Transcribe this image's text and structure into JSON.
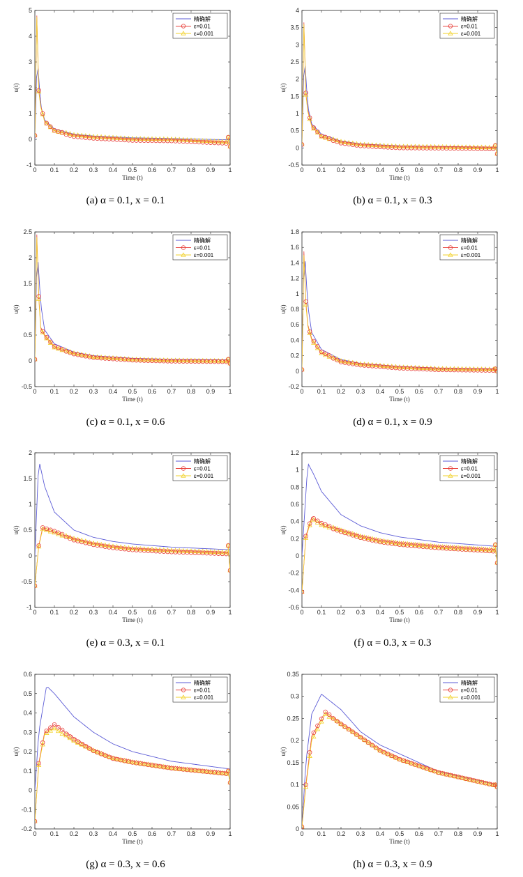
{
  "chart_data": [
    {
      "type": "line",
      "caption": "(a) α = 0.1, x = 0.1",
      "xlabel": "Time (t)",
      "ylabel": "u(t)",
      "xlim": [
        0,
        1
      ],
      "ylim": [
        -1,
        5
      ],
      "xticks": [
        0,
        0.1,
        0.2,
        0.3,
        0.4,
        0.5,
        0.6,
        0.7,
        0.8,
        0.9,
        1
      ],
      "yticks": [
        -1,
        0,
        1,
        2,
        3,
        4,
        5
      ],
      "legend": [
        "精确解",
        "ε=0.01",
        "ε=0.001"
      ],
      "exact_peak": {
        "t": 0.012,
        "u": 3.25
      },
      "eps_peak": {
        "t": 0.01,
        "u": 4.8
      },
      "start_value": 0.15,
      "series": [
        {
          "name": "精确解",
          "t": [
            0.005,
            0.012,
            0.03,
            0.05,
            0.1,
            0.2,
            0.3,
            0.5,
            0.7,
            1.0
          ],
          "u": [
            1.6,
            3.25,
            1.3,
            0.75,
            0.4,
            0.2,
            0.13,
            0.06,
            0.03,
            -0.02
          ]
        },
        {
          "name": "ε=0.01",
          "t": [
            0.01,
            0.02,
            0.03,
            0.05,
            0.1,
            0.2,
            0.3,
            0.5,
            0.7,
            1.0
          ],
          "u": [
            4.8,
            1.9,
            1.3,
            0.7,
            0.35,
            0.15,
            0.08,
            0.0,
            -0.02,
            -0.12
          ]
        },
        {
          "name": "ε=0.001",
          "t": [
            0.01,
            0.02,
            0.03,
            0.05,
            0.1,
            0.2,
            0.3,
            0.5,
            0.7,
            1.0
          ],
          "u": [
            4.75,
            1.85,
            1.25,
            0.68,
            0.33,
            0.13,
            0.06,
            -0.02,
            -0.04,
            -0.15
          ]
        }
      ],
      "eps_end": [
        0.08,
        -0.28
      ],
      "oscillation": 0.07,
      "exact_ttrough": 0.6
    },
    {
      "type": "line",
      "caption": "(b) α = 0.1, x = 0.3",
      "xlabel": "Time (t)",
      "ylabel": "u(t)",
      "xlim": [
        0,
        1
      ],
      "ylim": [
        -0.5,
        4
      ],
      "xticks": [
        0,
        0.1,
        0.2,
        0.3,
        0.4,
        0.5,
        0.6,
        0.7,
        0.8,
        0.9,
        1
      ],
      "yticks": [
        -0.5,
        0,
        0.5,
        1,
        1.5,
        2,
        2.5,
        3,
        3.5,
        4
      ],
      "legend": [
        "精确解",
        "ε=0.01",
        "ε=0.001"
      ],
      "exact_peak": {
        "t": 0.012,
        "u": 2.8
      },
      "eps_peak": {
        "t": 0.01,
        "u": 3.65
      },
      "start_value": 0.1,
      "series": [
        {
          "name": "精确解",
          "t": [
            0.005,
            0.012,
            0.03,
            0.05,
            0.1,
            0.2,
            0.3,
            0.5,
            0.7,
            1.0
          ],
          "u": [
            1.4,
            2.8,
            1.2,
            0.7,
            0.4,
            0.2,
            0.12,
            0.06,
            0.04,
            0.02
          ]
        },
        {
          "name": "ε=0.01",
          "t": [
            0.01,
            0.02,
            0.03,
            0.05,
            0.1,
            0.2,
            0.3,
            0.5,
            0.7,
            1.0
          ],
          "u": [
            3.65,
            1.6,
            1.1,
            0.65,
            0.35,
            0.17,
            0.09,
            0.03,
            0.02,
            0.0
          ]
        },
        {
          "name": "ε=0.001",
          "t": [
            0.01,
            0.02,
            0.03,
            0.05,
            0.1,
            0.2,
            0.3,
            0.5,
            0.7,
            1.0
          ],
          "u": [
            3.6,
            1.55,
            1.05,
            0.62,
            0.33,
            0.15,
            0.07,
            0.01,
            0.0,
            -0.02
          ]
        }
      ],
      "eps_end": [
        0.07,
        -0.17
      ],
      "oscillation": 0.05,
      "exact_ttrough": 0.6
    },
    {
      "type": "line",
      "caption": "(c) α = 0.1, x = 0.6",
      "xlabel": "Time (t)",
      "ylabel": "u(t)",
      "xlim": [
        0,
        1
      ],
      "ylim": [
        -0.5,
        2.5
      ],
      "xticks": [
        0,
        0.1,
        0.2,
        0.3,
        0.4,
        0.5,
        0.6,
        0.7,
        0.8,
        0.9,
        1
      ],
      "yticks": [
        -0.5,
        0,
        0.5,
        1,
        1.5,
        2,
        2.5
      ],
      "legend": [
        "精确解",
        "ε=0.01",
        "ε=0.001"
      ],
      "exact_peak": {
        "t": 0.012,
        "u": 2.2
      },
      "eps_peak": {
        "t": 0.01,
        "u": 2.45
      },
      "start_value": 0.03,
      "series": [
        {
          "name": "精确解",
          "t": [
            0.005,
            0.012,
            0.03,
            0.05,
            0.1,
            0.2,
            0.3,
            0.5,
            0.7,
            1.0
          ],
          "u": [
            1.1,
            2.2,
            1.1,
            0.6,
            0.33,
            0.17,
            0.1,
            0.05,
            0.03,
            0.02
          ]
        },
        {
          "name": "ε=0.01",
          "t": [
            0.01,
            0.02,
            0.03,
            0.05,
            0.1,
            0.2,
            0.3,
            0.5,
            0.7,
            1.0
          ],
          "u": [
            2.45,
            1.25,
            0.65,
            0.5,
            0.28,
            0.15,
            0.08,
            0.03,
            0.01,
            0.0
          ]
        },
        {
          "name": "ε=0.001",
          "t": [
            0.01,
            0.02,
            0.03,
            0.05,
            0.1,
            0.2,
            0.3,
            0.5,
            0.7,
            1.0
          ],
          "u": [
            2.4,
            1.2,
            0.62,
            0.48,
            0.26,
            0.13,
            0.06,
            0.01,
            -0.01,
            -0.02
          ]
        }
      ],
      "eps_end": [
        0.03,
        -0.05
      ],
      "oscillation": 0.03,
      "exact_ttrough": 0.6
    },
    {
      "type": "line",
      "caption": "(d) α = 0.1, x = 0.9",
      "xlabel": "Time (t)",
      "ylabel": "u(t)",
      "xlim": [
        0,
        1
      ],
      "ylim": [
        -0.2,
        1.8
      ],
      "xticks": [
        0,
        0.1,
        0.2,
        0.3,
        0.4,
        0.5,
        0.6,
        0.7,
        0.8,
        0.9,
        1
      ],
      "yticks": [
        -0.2,
        0,
        0.2,
        0.4,
        0.6,
        0.8,
        1,
        1.2,
        1.4,
        1.6,
        1.8
      ],
      "legend": [
        "精确解",
        "ε=0.01",
        "ε=0.001"
      ],
      "exact_peak": {
        "t": 0.012,
        "u": 1.62
      },
      "eps_peak": {
        "t": 0.01,
        "u": 1.55
      },
      "start_value": 0.02,
      "series": [
        {
          "name": "精确解",
          "t": [
            0.005,
            0.012,
            0.03,
            0.05,
            0.1,
            0.2,
            0.3,
            0.5,
            0.7,
            1.0
          ],
          "u": [
            0.8,
            1.62,
            0.85,
            0.5,
            0.28,
            0.15,
            0.1,
            0.06,
            0.04,
            0.03
          ]
        },
        {
          "name": "ε=0.01",
          "t": [
            0.01,
            0.02,
            0.03,
            0.05,
            0.1,
            0.2,
            0.3,
            0.5,
            0.7,
            1.0
          ],
          "u": [
            1.55,
            0.9,
            0.6,
            0.42,
            0.25,
            0.13,
            0.09,
            0.05,
            0.03,
            0.02
          ]
        },
        {
          "name": "ε=0.001",
          "t": [
            0.01,
            0.02,
            0.03,
            0.05,
            0.1,
            0.2,
            0.3,
            0.5,
            0.7,
            1.0
          ],
          "u": [
            1.5,
            0.86,
            0.58,
            0.4,
            0.23,
            0.12,
            0.08,
            0.04,
            0.02,
            0.01
          ]
        }
      ],
      "eps_end": [
        0.03,
        0.0
      ],
      "oscillation": 0.02,
      "exact_ttrough": 0.6
    },
    {
      "type": "line",
      "caption": "(e) α = 0.3, x = 0.1",
      "xlabel": "Time (t)",
      "ylabel": "u(t)",
      "xlim": [
        0,
        1
      ],
      "ylim": [
        -1,
        2
      ],
      "xticks": [
        0,
        0.1,
        0.2,
        0.3,
        0.4,
        0.5,
        0.6,
        0.7,
        0.8,
        0.9,
        1
      ],
      "yticks": [
        -1,
        -0.5,
        0,
        0.5,
        1,
        1.5,
        2
      ],
      "legend": [
        "精确解",
        "ε=0.01",
        "ε=0.001"
      ],
      "exact_peak": {
        "t": 0.02,
        "u": 1.87
      },
      "eps_peak": {
        "t": 0.04,
        "u": 0.55
      },
      "start_value": -0.58,
      "series": [
        {
          "name": "精确解",
          "t": [
            0.0,
            0.02,
            0.05,
            0.1,
            0.2,
            0.3,
            0.4,
            0.5,
            0.7,
            1.0
          ],
          "u": [
            0.0,
            1.87,
            1.35,
            0.85,
            0.5,
            0.36,
            0.28,
            0.23,
            0.17,
            0.12
          ]
        },
        {
          "name": "ε=0.01",
          "t": [
            0.0,
            0.02,
            0.04,
            0.1,
            0.2,
            0.3,
            0.4,
            0.5,
            0.7,
            1.0
          ],
          "u": [
            -0.58,
            0.2,
            0.55,
            0.48,
            0.33,
            0.24,
            0.18,
            0.14,
            0.1,
            0.06
          ]
        },
        {
          "name": "ε=0.001",
          "t": [
            0.0,
            0.02,
            0.04,
            0.1,
            0.2,
            0.3,
            0.4,
            0.5,
            0.7,
            1.0
          ],
          "u": [
            -0.56,
            0.18,
            0.52,
            0.45,
            0.31,
            0.22,
            0.16,
            0.12,
            0.08,
            0.04
          ]
        }
      ],
      "eps_end": [
        0.2,
        -0.28
      ],
      "oscillation": 0.04,
      "exact_ttrough": 0.6
    },
    {
      "type": "line",
      "caption": "(f) α = 0.3, x = 0.3",
      "xlabel": "Time (t)",
      "ylabel": "u(t)",
      "xlim": [
        0,
        1
      ],
      "ylim": [
        -0.6,
        1.2
      ],
      "xticks": [
        0,
        0.1,
        0.2,
        0.3,
        0.4,
        0.5,
        0.6,
        0.7,
        0.8,
        0.9,
        1
      ],
      "yticks": [
        -0.6,
        -0.4,
        -0.2,
        0,
        0.2,
        0.4,
        0.6,
        0.8,
        1,
        1.2
      ],
      "legend": [
        "精确解",
        "ε=0.01",
        "ε=0.001"
      ],
      "exact_peak": {
        "t": 0.03,
        "u": 1.08
      },
      "eps_peak": {
        "t": 0.05,
        "u": 0.45
      },
      "start_value": -0.42,
      "series": [
        {
          "name": "精确解",
          "t": [
            0.0,
            0.03,
            0.06,
            0.1,
            0.2,
            0.3,
            0.4,
            0.5,
            0.7,
            1.0
          ],
          "u": [
            0.0,
            1.08,
            0.95,
            0.75,
            0.48,
            0.35,
            0.27,
            0.22,
            0.16,
            0.11
          ]
        },
        {
          "name": "ε=0.01",
          "t": [
            0.0,
            0.02,
            0.05,
            0.1,
            0.2,
            0.3,
            0.4,
            0.5,
            0.7,
            1.0
          ],
          "u": [
            -0.42,
            0.23,
            0.45,
            0.38,
            0.3,
            0.23,
            0.18,
            0.15,
            0.11,
            0.07
          ]
        },
        {
          "name": "ε=0.001",
          "t": [
            0.0,
            0.02,
            0.05,
            0.1,
            0.2,
            0.3,
            0.4,
            0.5,
            0.7,
            1.0
          ],
          "u": [
            -0.4,
            0.21,
            0.43,
            0.36,
            0.28,
            0.21,
            0.16,
            0.13,
            0.09,
            0.05
          ]
        }
      ],
      "eps_end": [
        0.13,
        -0.08
      ],
      "oscillation": 0.03,
      "exact_ttrough": 0.6
    },
    {
      "type": "line",
      "caption": "(g) α = 0.3, x = 0.6",
      "xlabel": "Time (t)",
      "ylabel": "u(t)",
      "xlim": [
        0,
        1
      ],
      "ylim": [
        -0.2,
        0.6
      ],
      "xticks": [
        0,
        0.1,
        0.2,
        0.3,
        0.4,
        0.5,
        0.6,
        0.7,
        0.8,
        0.9,
        1
      ],
      "yticks": [
        -0.2,
        -0.1,
        0,
        0.1,
        0.2,
        0.3,
        0.4,
        0.5,
        0.6
      ],
      "legend": [
        "精确解",
        "ε=0.01",
        "ε=0.001"
      ],
      "exact_peak": {
        "t": 0.06,
        "u": 0.54
      },
      "eps_peak": {
        "t": 0.1,
        "u": 0.34
      },
      "start_value": -0.16,
      "series": [
        {
          "name": "精确解",
          "t": [
            0.0,
            0.02,
            0.06,
            0.1,
            0.2,
            0.3,
            0.4,
            0.5,
            0.7,
            1.0
          ],
          "u": [
            0.0,
            0.3,
            0.54,
            0.5,
            0.38,
            0.3,
            0.24,
            0.2,
            0.15,
            0.11
          ]
        },
        {
          "name": "ε=0.01",
          "t": [
            0.0,
            0.02,
            0.05,
            0.1,
            0.2,
            0.3,
            0.4,
            0.5,
            0.7,
            1.0
          ],
          "u": [
            -0.16,
            0.14,
            0.3,
            0.34,
            0.27,
            0.21,
            0.17,
            0.15,
            0.12,
            0.09
          ]
        },
        {
          "name": "ε=0.001",
          "t": [
            0.0,
            0.02,
            0.05,
            0.1,
            0.2,
            0.3,
            0.4,
            0.5,
            0.7,
            1.0
          ],
          "u": [
            -0.15,
            0.13,
            0.29,
            0.32,
            0.25,
            0.2,
            0.16,
            0.14,
            0.11,
            0.08
          ]
        }
      ],
      "eps_end": [
        0.1,
        0.04
      ],
      "oscillation": 0.01,
      "exact_ttrough": 0.6
    },
    {
      "type": "line",
      "caption": "(h) α = 0.3, x = 0.9",
      "xlabel": "Time (t)",
      "ylabel": "u(t)",
      "xlim": [
        0,
        1
      ],
      "ylim": [
        0,
        0.35
      ],
      "xticks": [
        0,
        0.1,
        0.2,
        0.3,
        0.4,
        0.5,
        0.6,
        0.7,
        0.8,
        0.9,
        1
      ],
      "yticks": [
        0,
        0.05,
        0.1,
        0.15,
        0.2,
        0.25,
        0.3,
        0.35
      ],
      "legend": [
        "精确解",
        "ε=0.01",
        "ε=0.001"
      ],
      "exact_peak": {
        "t": 0.1,
        "u": 0.305
      },
      "eps_peak": {
        "t": 0.12,
        "u": 0.265
      },
      "start_value": 0.005,
      "series": [
        {
          "name": "精确解",
          "t": [
            0.0,
            0.02,
            0.05,
            0.1,
            0.2,
            0.3,
            0.4,
            0.5,
            0.7,
            1.0
          ],
          "u": [
            0.005,
            0.15,
            0.26,
            0.305,
            0.27,
            0.22,
            0.19,
            0.17,
            0.13,
            0.1
          ]
        },
        {
          "name": "ε=0.01",
          "t": [
            0.0,
            0.02,
            0.05,
            0.12,
            0.2,
            0.3,
            0.4,
            0.5,
            0.7,
            1.0
          ],
          "u": [
            0.005,
            0.1,
            0.21,
            0.265,
            0.24,
            0.21,
            0.18,
            0.16,
            0.13,
            0.1
          ]
        },
        {
          "name": "ε=0.001",
          "t": [
            0.0,
            0.02,
            0.05,
            0.12,
            0.2,
            0.3,
            0.4,
            0.5,
            0.7,
            1.0
          ],
          "u": [
            0.004,
            0.095,
            0.2,
            0.26,
            0.235,
            0.205,
            0.175,
            0.155,
            0.125,
            0.095
          ]
        }
      ],
      "eps_end": [
        0.1,
        0.095
      ],
      "oscillation": 0.004,
      "exact_ttrough": 0.6
    }
  ],
  "colors": {
    "exact": "#5b5bd6",
    "eps001": "#e8403b",
    "eps0001": "#f2d22a",
    "axis": "#262626"
  }
}
